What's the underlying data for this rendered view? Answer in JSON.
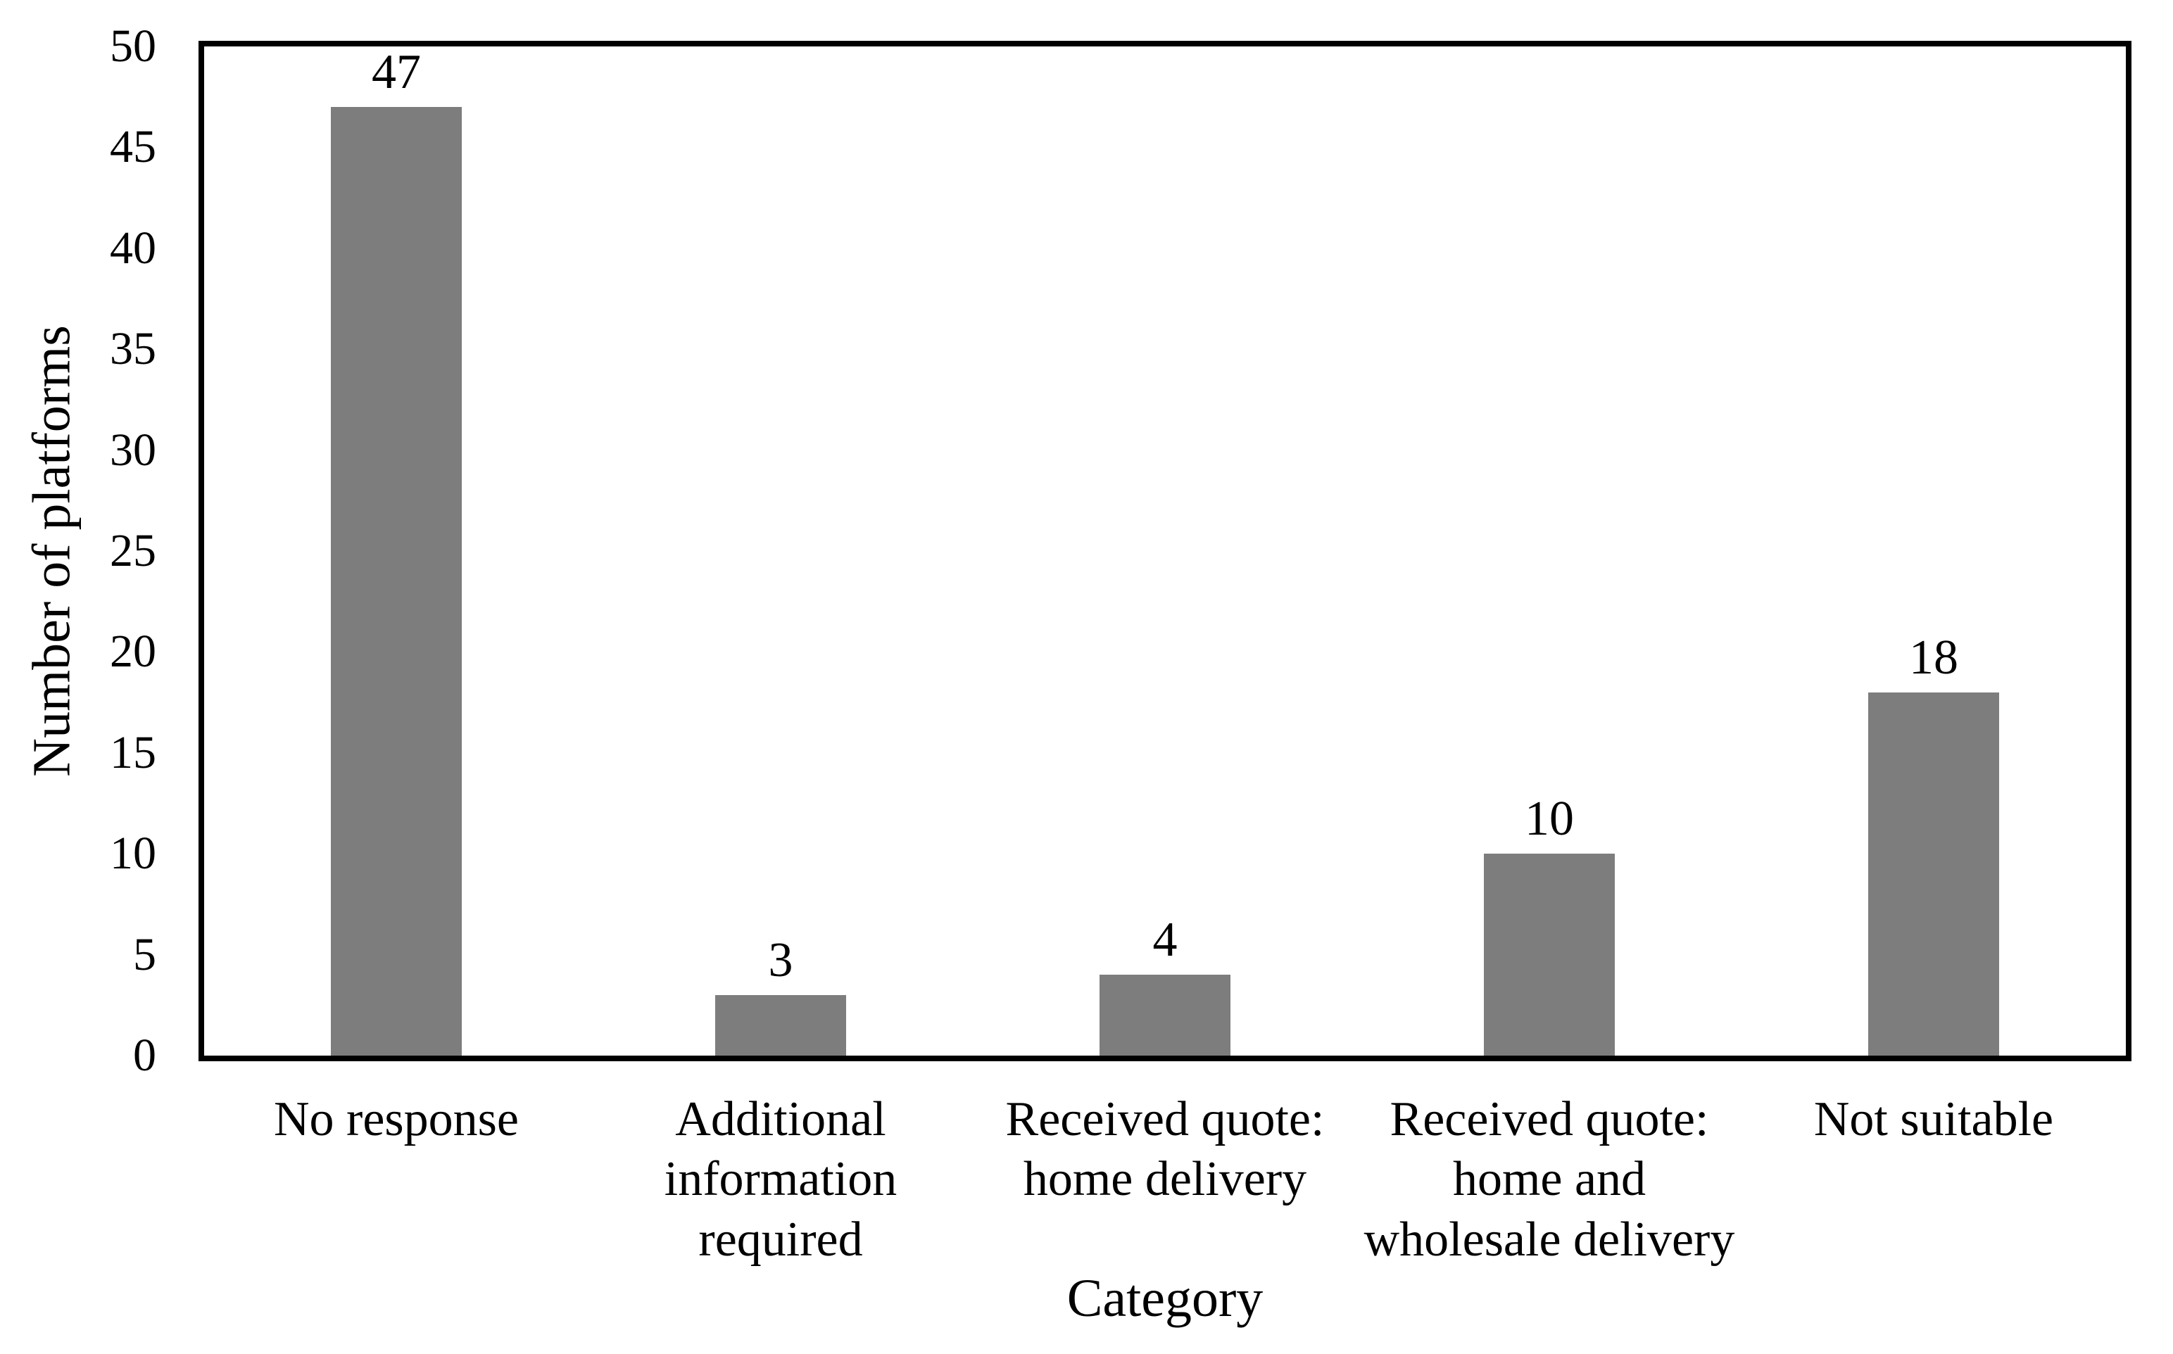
{
  "chart_data": {
    "type": "bar",
    "title": "",
    "xlabel": "Category",
    "ylabel": "Number of platforms",
    "categories": [
      "No response",
      "Additional information required",
      "Received quote: home delivery",
      "Received quote: home and wholesale delivery",
      "Not suitable"
    ],
    "category_lines": [
      [
        "No response"
      ],
      [
        "Additional",
        "information",
        "required"
      ],
      [
        "Received quote:",
        "home delivery"
      ],
      [
        "Received quote:",
        "home and",
        "wholesale delivery"
      ],
      [
        "Not suitable"
      ]
    ],
    "values": [
      47,
      3,
      4,
      10,
      18
    ],
    "value_labels": [
      "47",
      "3",
      "4",
      "10",
      "18"
    ],
    "ylim": [
      0,
      50
    ],
    "ytick_step": 5,
    "yticks": [
      0,
      5,
      10,
      15,
      20,
      25,
      30,
      35,
      40,
      45,
      50
    ],
    "grid": false,
    "legend": "none",
    "bar_color": "#7d7d7d",
    "axis_color": "#000000",
    "text_color": "#000000",
    "background": "#ffffff"
  }
}
